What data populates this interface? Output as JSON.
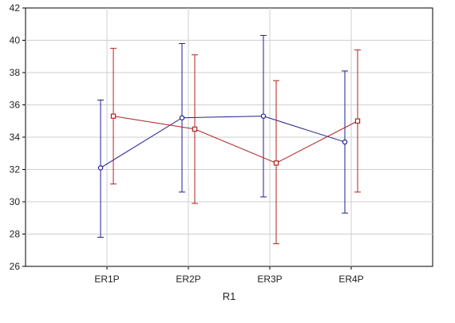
{
  "chart_data": {
    "type": "line",
    "title": "",
    "xlabel": "R1",
    "ylabel": "",
    "categories": [
      "ER1P",
      "ER2P",
      "ER3P",
      "ER4P"
    ],
    "ylim": [
      26,
      42
    ],
    "yticks": [
      26,
      28,
      30,
      32,
      34,
      36,
      38,
      40,
      42
    ],
    "grid": true,
    "legend": "none",
    "series": [
      {
        "color": "#1f1f8f",
        "marker": "circle",
        "values": [
          32.1,
          35.2,
          35.3,
          33.7
        ],
        "error_low": [
          27.8,
          30.6,
          30.3,
          29.3
        ],
        "error_high": [
          36.3,
          39.8,
          40.3,
          38.1
        ]
      },
      {
        "color": "#b22222",
        "marker": "square",
        "values": [
          35.3,
          34.5,
          32.4,
          35.0
        ],
        "error_low": [
          31.1,
          29.9,
          27.4,
          30.6
        ],
        "error_high": [
          39.5,
          39.1,
          37.5,
          39.4
        ]
      }
    ]
  }
}
